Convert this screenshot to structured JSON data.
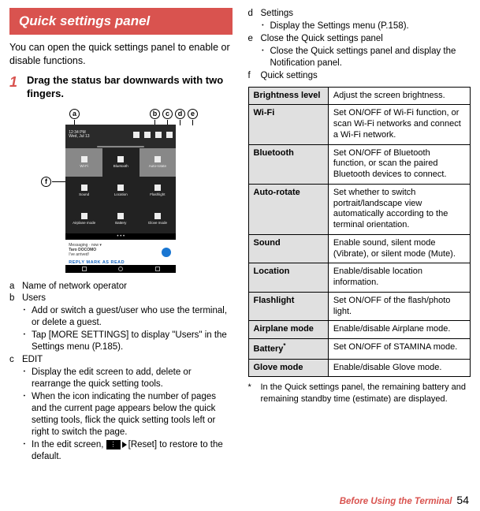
{
  "heading": "Quick settings panel",
  "intro": "You can open the quick settings panel to enable or disable functions.",
  "step_num": "1",
  "step_text": "Drag the status bar downwards with two fingers.",
  "callouts": {
    "c1": "a",
    "c2": "b",
    "c3": "c",
    "c4": "d",
    "c5": "e",
    "c6": "f"
  },
  "screenshot": {
    "time": "12:34 PM",
    "date": "Wed, Jul 13",
    "tiles": [
      "Wi-Fi",
      "Bluetooth",
      "Auto-rotate",
      "Sound",
      "Location",
      "Flashlight",
      "Airplane mode",
      "Battery",
      "Glove mode"
    ],
    "dots": "• • •",
    "msg_app": "Messaging · now ▾",
    "msg_from": "Taro DOCOMO",
    "msg_body": "I've arrived!",
    "msg_links": "REPLY        MARK AS READ"
  },
  "enum": {
    "a": {
      "mark": "a",
      "title": "Name of network operator"
    },
    "b": {
      "mark": "b",
      "title": "Users",
      "b1": "Add or switch a guest/user who use the terminal, or delete a guest.",
      "b2": "Tap [MORE SETTINGS] to display \"Users\" in the Settings menu (P.185)."
    },
    "c": {
      "mark": "c",
      "title": "EDIT",
      "b1": "Display the edit screen to add, delete or rearrange the quick setting tools.",
      "b2": "When the icon indicating the number of pages and the current page appears below the quick setting tools, flick the quick setting tools left or right to switch the page.",
      "b3_pre": "In the edit screen, ",
      "b3_post": "[Reset] to restore to the default."
    },
    "d": {
      "mark": "d",
      "title": "Settings",
      "b1": "Display the Settings menu (P.158)."
    },
    "e": {
      "mark": "e",
      "title": "Close the Quick settings panel",
      "b1": "Close the Quick settings panel and display the Notification panel."
    },
    "f": {
      "mark": "f",
      "title": "Quick settings"
    }
  },
  "table": [
    {
      "k": "Brightness level",
      "v": "Adjust the screen brightness."
    },
    {
      "k": "Wi-Fi",
      "v": "Set ON/OFF of Wi-Fi function, or scan Wi-Fi networks and connect a Wi-Fi network."
    },
    {
      "k": "Bluetooth",
      "v": "Set ON/OFF of Bluetooth function, or scan the paired Bluetooth devices to connect."
    },
    {
      "k": "Auto-rotate",
      "v": "Set whether to switch portrait/landscape view automatically according to the terminal orientation."
    },
    {
      "k": "Sound",
      "v": "Enable sound, silent mode (Vibrate), or silent mode (Mute)."
    },
    {
      "k": "Location",
      "v": "Enable/disable location information."
    },
    {
      "k": "Flashlight",
      "v": "Set ON/OFF of the flash/photo light."
    },
    {
      "k": "Airplane mode",
      "v": "Enable/disable Airplane mode."
    },
    {
      "k": "Battery",
      "kstar": "*",
      "v": "Set ON/OFF of STAMINA mode."
    },
    {
      "k": "Glove mode",
      "v": "Enable/disable Glove mode."
    }
  ],
  "footnote_star": "*",
  "footnote": "In the Quick settings panel, the remaining battery and remaining standby time (estimate) are displayed.",
  "footer_section": "Before Using the Terminal",
  "footer_page": "54"
}
